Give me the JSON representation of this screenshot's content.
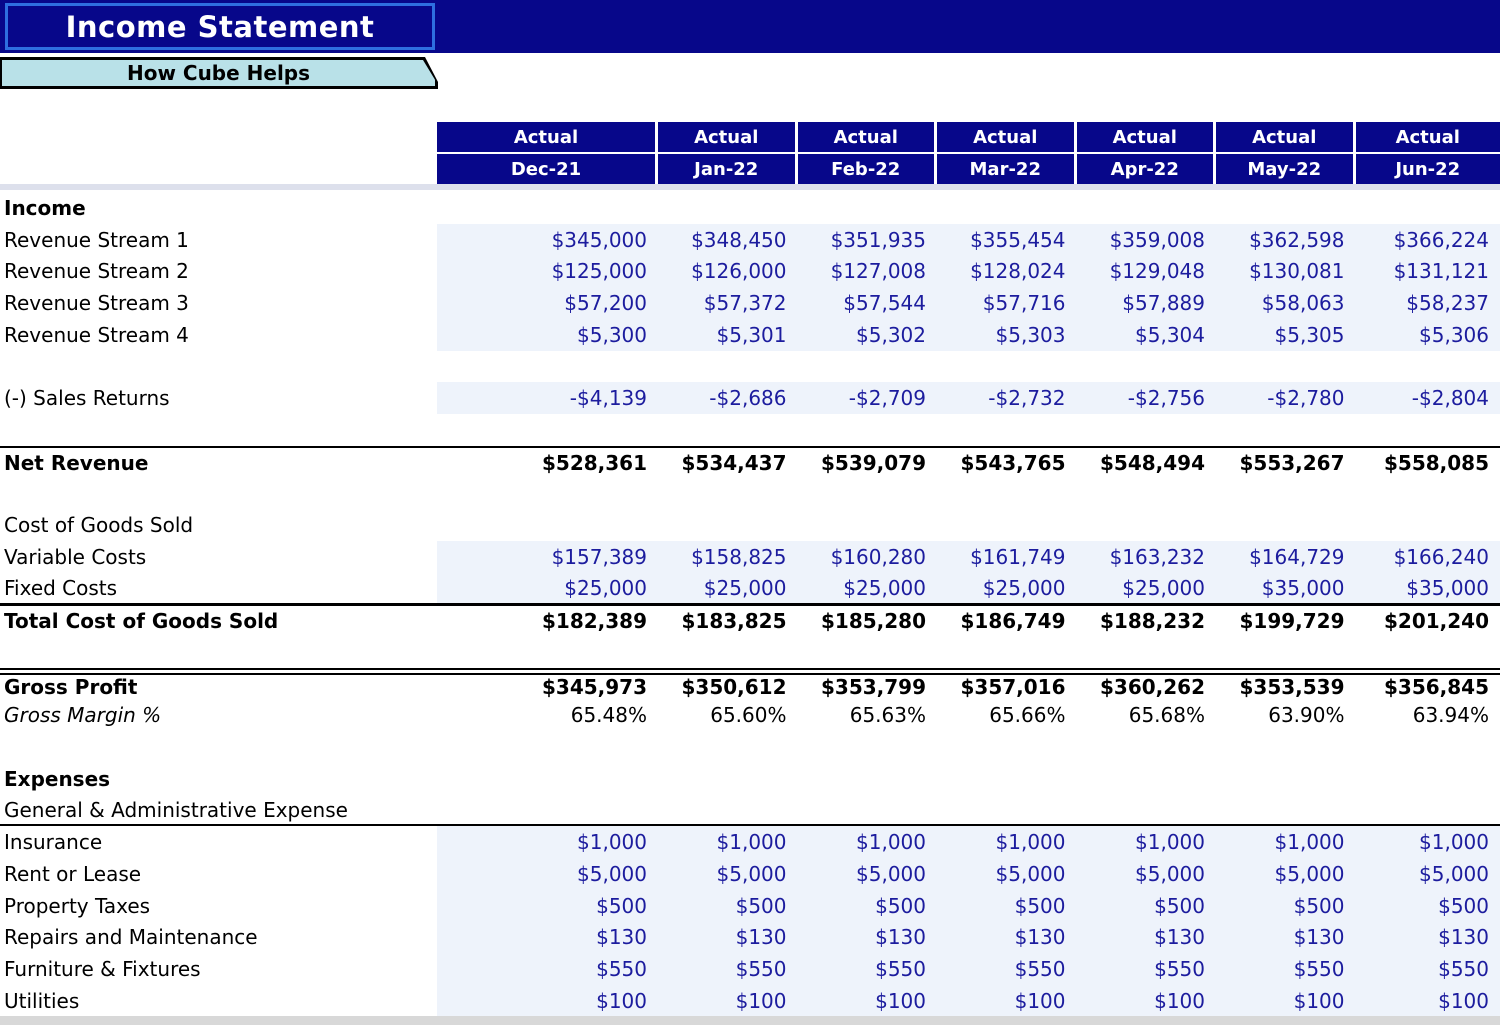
{
  "title": "Income Statement",
  "tab": {
    "label": "How Cube Helps"
  },
  "colors": {
    "navy": "#07078a",
    "title_border": "#2e6fe0",
    "tab_background": "#b9e1e8",
    "cell_shade": "#eef3fb",
    "value_text_blue": "#1c1c9e",
    "freeze_band": "#dde0ec",
    "bottom_band": "#d8d8d8"
  },
  "table": {
    "period_type_row": [
      "Actual",
      "Actual",
      "Actual",
      "Actual",
      "Actual",
      "Actual",
      "Actual"
    ],
    "period_row": [
      "Dec-21",
      "Jan-22",
      "Feb-22",
      "Mar-22",
      "Apr-22",
      "May-22",
      "Jun-22"
    ],
    "rows": [
      {
        "label": "Income",
        "type": "section"
      },
      {
        "label": "Revenue Stream 1",
        "type": "data",
        "shaded": true,
        "values": [
          "$345,000",
          "$348,450",
          "$351,935",
          "$355,454",
          "$359,008",
          "$362,598",
          "$366,224"
        ]
      },
      {
        "label": "Revenue Stream 2",
        "type": "data",
        "shaded": true,
        "values": [
          "$125,000",
          "$126,000",
          "$127,008",
          "$128,024",
          "$129,048",
          "$130,081",
          "$131,121"
        ]
      },
      {
        "label": "Revenue Stream 3",
        "type": "data",
        "shaded": true,
        "values": [
          "$57,200",
          "$57,372",
          "$57,544",
          "$57,716",
          "$57,889",
          "$58,063",
          "$58,237"
        ]
      },
      {
        "label": "Revenue Stream 4",
        "type": "data",
        "shaded": true,
        "values": [
          "$5,300",
          "$5,301",
          "$5,302",
          "$5,303",
          "$5,304",
          "$5,305",
          "$5,306"
        ]
      },
      {
        "type": "blank"
      },
      {
        "label": "(-) Sales Returns",
        "type": "data",
        "shaded": true,
        "values": [
          "-$4,139",
          "-$2,686",
          "-$2,709",
          "-$2,732",
          "-$2,756",
          "-$2,780",
          "-$2,804"
        ]
      },
      {
        "type": "blank"
      },
      {
        "label": "Net Revenue",
        "type": "total",
        "border_top": "single",
        "values": [
          "$528,361",
          "$534,437",
          "$539,079",
          "$543,765",
          "$548,494",
          "$553,267",
          "$558,085"
        ]
      },
      {
        "type": "blank"
      },
      {
        "label": "Cost of Goods Sold",
        "type": "plain"
      },
      {
        "label": "Variable Costs",
        "type": "data",
        "shaded": true,
        "values": [
          "$157,389",
          "$158,825",
          "$160,280",
          "$161,749",
          "$163,232",
          "$164,729",
          "$166,240"
        ]
      },
      {
        "label": "Fixed Costs",
        "type": "data",
        "shaded": true,
        "border_bottom": "thin",
        "values": [
          "$25,000",
          "$25,000",
          "$25,000",
          "$25,000",
          "$25,000",
          "$35,000",
          "$35,000"
        ]
      },
      {
        "label": "Total Cost of Goods Sold",
        "type": "total",
        "border_top": "single",
        "values": [
          "$182,389",
          "$183,825",
          "$185,280",
          "$186,749",
          "$188,232",
          "$199,729",
          "$201,240"
        ]
      },
      {
        "type": "blank"
      },
      {
        "label": "Gross Profit",
        "type": "total",
        "border_top": "double",
        "values": [
          "$345,973",
          "$350,612",
          "$353,799",
          "$357,016",
          "$360,262",
          "$353,539",
          "$356,845"
        ]
      },
      {
        "label": "Gross Margin %",
        "type": "italic",
        "percent": true,
        "values": [
          "65.48%",
          "65.60%",
          "65.63%",
          "65.66%",
          "65.68%",
          "63.90%",
          "63.94%"
        ]
      },
      {
        "type": "blank"
      },
      {
        "label": "Expenses",
        "type": "section"
      },
      {
        "label": "General & Administrative Expense",
        "type": "plain",
        "border_bottom": "thick"
      },
      {
        "label": "Insurance",
        "type": "data",
        "shaded": true,
        "values": [
          "$1,000",
          "$1,000",
          "$1,000",
          "$1,000",
          "$1,000",
          "$1,000",
          "$1,000"
        ]
      },
      {
        "label": "Rent or Lease",
        "type": "data",
        "shaded": true,
        "values": [
          "$5,000",
          "$5,000",
          "$5,000",
          "$5,000",
          "$5,000",
          "$5,000",
          "$5,000"
        ]
      },
      {
        "label": "Property Taxes",
        "type": "data",
        "shaded": true,
        "values": [
          "$500",
          "$500",
          "$500",
          "$500",
          "$500",
          "$500",
          "$500"
        ]
      },
      {
        "label": "Repairs and Maintenance",
        "type": "data",
        "shaded": true,
        "values": [
          "$130",
          "$130",
          "$130",
          "$130",
          "$130",
          "$130",
          "$130"
        ]
      },
      {
        "label": "Furniture & Fixtures",
        "type": "data",
        "shaded": true,
        "values": [
          "$550",
          "$550",
          "$550",
          "$550",
          "$550",
          "$550",
          "$550"
        ]
      },
      {
        "label": "Utilities",
        "type": "data",
        "shaded": true,
        "values": [
          "$100",
          "$100",
          "$100",
          "$100",
          "$100",
          "$100",
          "$100"
        ]
      }
    ]
  }
}
